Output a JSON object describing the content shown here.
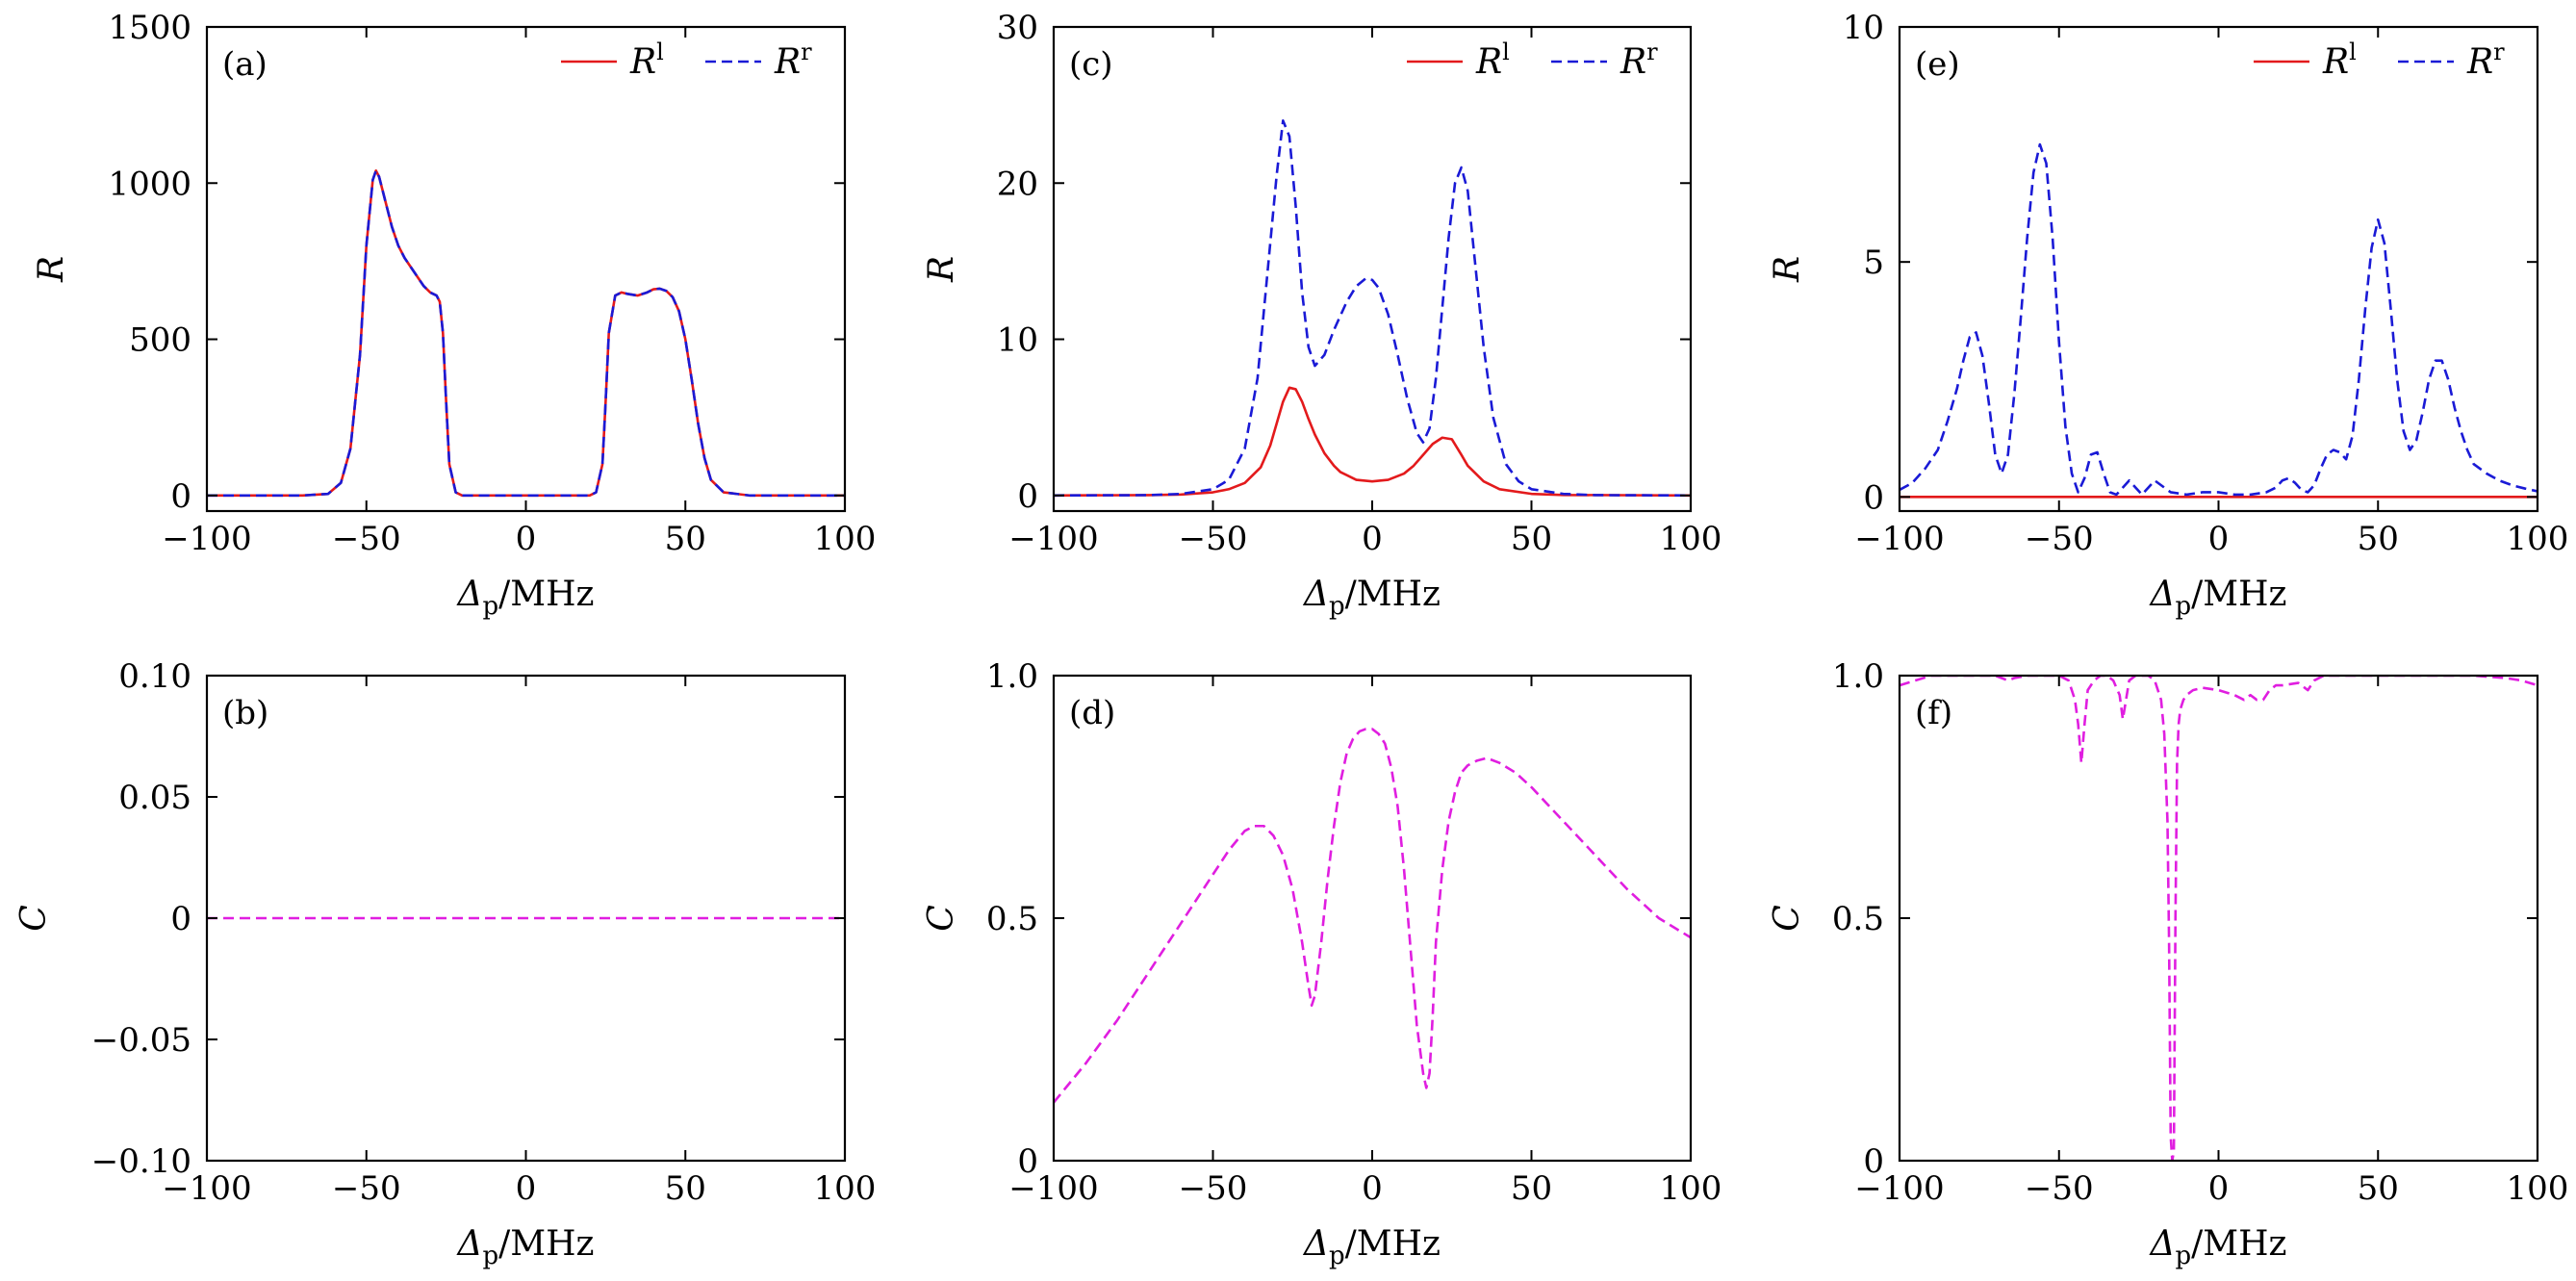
{
  "colors": {
    "red": "#e31a1c",
    "blue": "#1a1ad6",
    "magenta": "#e01ee0",
    "axis": "#000000"
  },
  "chart_data": [
    {
      "panel": "(a)",
      "type": "line",
      "xlabel": {
        "main": "Δ",
        "sub": "p",
        "unit": "/MHz"
      },
      "ylabel": "R",
      "xlim": [
        -100,
        100
      ],
      "ylim": [
        -50,
        1500
      ],
      "xticks": [
        -100,
        -50,
        0,
        50,
        100
      ],
      "xtick_labels": [
        "−100",
        "−50",
        "0",
        "50",
        "100"
      ],
      "yticks": [
        0,
        500,
        1000,
        1500
      ],
      "ytick_labels": [
        "0",
        "500",
        "1000",
        "1500"
      ],
      "legend": {
        "placement": "top-right",
        "entries": [
          {
            "base": "R",
            "sup": "l"
          },
          {
            "base": "R",
            "sup": "r"
          }
        ]
      },
      "series": [
        {
          "name": "R^l",
          "color": "red",
          "dash": false,
          "x": [
            -100,
            -70,
            -62,
            -58,
            -55,
            -52,
            -50,
            -48,
            -47,
            -46,
            -44,
            -42,
            -40,
            -38,
            -36,
            -34,
            -32,
            -30,
            -28,
            -27,
            -26,
            -25,
            -24,
            -22,
            -20,
            0,
            20,
            22,
            24,
            25,
            26,
            28,
            30,
            32,
            35,
            38,
            40,
            42,
            44,
            46,
            48,
            50,
            52,
            54,
            56,
            58,
            62,
            70,
            100
          ],
          "y": [
            0,
            0,
            5,
            40,
            150,
            450,
            800,
            1010,
            1040,
            1020,
            940,
            860,
            800,
            760,
            730,
            700,
            670,
            650,
            640,
            620,
            520,
            300,
            100,
            10,
            0,
            0,
            0,
            10,
            100,
            300,
            520,
            640,
            650,
            645,
            640,
            650,
            660,
            662,
            655,
            635,
            590,
            500,
            370,
            230,
            120,
            50,
            10,
            0,
            0
          ]
        },
        {
          "name": "R^r",
          "color": "blue",
          "dash": true,
          "x": [
            -100,
            -70,
            -62,
            -58,
            -55,
            -52,
            -50,
            -48,
            -47,
            -46,
            -44,
            -42,
            -40,
            -38,
            -36,
            -34,
            -32,
            -30,
            -28,
            -27,
            -26,
            -25,
            -24,
            -22,
            -20,
            0,
            20,
            22,
            24,
            25,
            26,
            28,
            30,
            32,
            35,
            38,
            40,
            42,
            44,
            46,
            48,
            50,
            52,
            54,
            56,
            58,
            62,
            70,
            100
          ],
          "y": [
            0,
            0,
            5,
            40,
            150,
            450,
            800,
            1010,
            1040,
            1020,
            940,
            860,
            800,
            760,
            730,
            700,
            670,
            650,
            640,
            620,
            520,
            300,
            100,
            10,
            0,
            0,
            0,
            10,
            100,
            300,
            520,
            640,
            650,
            645,
            640,
            650,
            660,
            662,
            655,
            635,
            590,
            500,
            370,
            230,
            120,
            50,
            10,
            0,
            0
          ]
        }
      ]
    },
    {
      "panel": "(c)",
      "type": "line",
      "xlabel": {
        "main": "Δ",
        "sub": "p",
        "unit": "/MHz"
      },
      "ylabel": "R",
      "xlim": [
        -100,
        100
      ],
      "ylim": [
        -1,
        30
      ],
      "xticks": [
        -100,
        -50,
        0,
        50,
        100
      ],
      "xtick_labels": [
        "−100",
        "−50",
        "0",
        "50",
        "100"
      ],
      "yticks": [
        0,
        10,
        20,
        30
      ],
      "ytick_labels": [
        "0",
        "10",
        "20",
        "30"
      ],
      "legend": {
        "placement": "top-right",
        "entries": [
          {
            "base": "R",
            "sup": "l"
          },
          {
            "base": "R",
            "sup": "r"
          }
        ]
      },
      "series": [
        {
          "name": "R^l",
          "color": "red",
          "dash": false,
          "x": [
            -100,
            -70,
            -60,
            -50,
            -45,
            -40,
            -35,
            -32,
            -30,
            -28,
            -26,
            -24,
            -22,
            -20,
            -18,
            -15,
            -12,
            -10,
            -5,
            0,
            5,
            10,
            13,
            16,
            19,
            22,
            25,
            28,
            30,
            35,
            40,
            50,
            60,
            100
          ],
          "y": [
            0,
            0.02,
            0.06,
            0.2,
            0.4,
            0.8,
            1.8,
            3.2,
            4.6,
            6.0,
            6.9,
            6.8,
            6.0,
            4.9,
            3.9,
            2.7,
            1.9,
            1.5,
            1.0,
            0.9,
            1.0,
            1.4,
            1.9,
            2.6,
            3.3,
            3.7,
            3.6,
            2.6,
            1.9,
            0.9,
            0.4,
            0.1,
            0.03,
            0
          ]
        },
        {
          "name": "R^r",
          "color": "blue",
          "dash": true,
          "x": [
            -100,
            -70,
            -60,
            -50,
            -45,
            -40,
            -36,
            -33,
            -30,
            -28,
            -26,
            -24,
            -22,
            -20,
            -18,
            -15,
            -12,
            -8,
            -5,
            -2,
            0,
            2,
            5,
            8,
            11,
            14,
            16,
            18,
            20,
            22,
            24,
            26,
            28,
            30,
            32,
            35,
            38,
            42,
            46,
            50,
            60,
            70,
            100
          ],
          "y": [
            0,
            0.02,
            0.1,
            0.4,
            1.0,
            3.0,
            7.5,
            14.0,
            20.5,
            24.0,
            23.0,
            18.5,
            13.0,
            9.5,
            8.3,
            9.0,
            10.6,
            12.4,
            13.4,
            13.9,
            13.8,
            13.3,
            11.6,
            9.0,
            6.2,
            4.0,
            3.4,
            4.3,
            7.5,
            12.0,
            16.5,
            20.0,
            21.0,
            19.5,
            15.5,
            9.5,
            5.0,
            2.0,
            0.9,
            0.4,
            0.1,
            0.02,
            0
          ]
        }
      ]
    },
    {
      "panel": "(e)",
      "type": "line",
      "xlabel": {
        "main": "Δ",
        "sub": "p",
        "unit": "/MHz"
      },
      "ylabel": "R",
      "xlim": [
        -100,
        100
      ],
      "ylim": [
        -0.3,
        10
      ],
      "xticks": [
        -100,
        -50,
        0,
        50,
        100
      ],
      "xtick_labels": [
        "−100",
        "−50",
        "0",
        "50",
        "100"
      ],
      "yticks": [
        0,
        5,
        10
      ],
      "ytick_labels": [
        "0",
        "5",
        "10"
      ],
      "legend": {
        "placement": "top-right",
        "entries": [
          {
            "base": "R",
            "sup": "l"
          },
          {
            "base": "R",
            "sup": "r"
          }
        ]
      },
      "series": [
        {
          "name": "R^l",
          "color": "red",
          "dash": false,
          "x": [
            -100,
            100
          ],
          "y": [
            0,
            0
          ]
        },
        {
          "name": "R^r",
          "color": "blue",
          "dash": true,
          "x": [
            -100,
            -96,
            -92,
            -88,
            -85,
            -82,
            -80,
            -78,
            -76,
            -74,
            -72,
            -70,
            -68,
            -66,
            -64,
            -62,
            -60,
            -58,
            -56,
            -54,
            -52,
            -50,
            -48,
            -46,
            -44,
            -42,
            -40,
            -38,
            -36,
            -34,
            -32,
            -30,
            -28,
            -26,
            -24,
            -22,
            -20,
            -15,
            -10,
            -5,
            0,
            5,
            10,
            15,
            18,
            20,
            22,
            24,
            26,
            28,
            30,
            32,
            34,
            36,
            38,
            40,
            42,
            44,
            46,
            48,
            50,
            52,
            54,
            56,
            58,
            60,
            62,
            64,
            66,
            68,
            70,
            72,
            74,
            76,
            78,
            80,
            84,
            88,
            92,
            96,
            100
          ],
          "y": [
            0.15,
            0.3,
            0.6,
            1.0,
            1.6,
            2.3,
            2.9,
            3.4,
            3.5,
            3.0,
            2.0,
            0.9,
            0.5,
            0.9,
            2.2,
            3.8,
            5.5,
            6.9,
            7.5,
            7.1,
            5.5,
            3.3,
            1.5,
            0.5,
            0.1,
            0.4,
            0.9,
            0.95,
            0.5,
            0.1,
            0.05,
            0.2,
            0.35,
            0.2,
            0.05,
            0.2,
            0.35,
            0.1,
            0.05,
            0.1,
            0.1,
            0.05,
            0.05,
            0.1,
            0.2,
            0.35,
            0.4,
            0.3,
            0.15,
            0.1,
            0.25,
            0.6,
            0.9,
            1.0,
            0.95,
            0.8,
            1.3,
            2.5,
            4.0,
            5.3,
            5.9,
            5.4,
            4.0,
            2.5,
            1.4,
            1.0,
            1.2,
            1.8,
            2.5,
            2.9,
            2.9,
            2.5,
            1.9,
            1.4,
            1.0,
            0.7,
            0.5,
            0.35,
            0.25,
            0.18,
            0.12
          ]
        }
      ]
    },
    {
      "panel": "(b)",
      "type": "line",
      "xlabel": {
        "main": "Δ",
        "sub": "p",
        "unit": "/MHz"
      },
      "ylabel": "C",
      "xlim": [
        -100,
        100
      ],
      "ylim": [
        -0.1,
        0.1
      ],
      "xticks": [
        -100,
        -50,
        0,
        50,
        100
      ],
      "xtick_labels": [
        "−100",
        "−50",
        "0",
        "50",
        "100"
      ],
      "yticks": [
        -0.1,
        -0.05,
        0,
        0.05,
        0.1
      ],
      "ytick_labels": [
        "−0.10",
        "−0.05",
        "0",
        "0.05",
        "0.10"
      ],
      "series": [
        {
          "name": "C",
          "color": "magenta",
          "dash": true,
          "x": [
            -100,
            100
          ],
          "y": [
            0,
            0
          ]
        }
      ]
    },
    {
      "panel": "(d)",
      "type": "line",
      "xlabel": {
        "main": "Δ",
        "sub": "p",
        "unit": "/MHz"
      },
      "ylabel": "C",
      "xlim": [
        -100,
        100
      ],
      "ylim": [
        0,
        1
      ],
      "xticks": [
        -100,
        -50,
        0,
        50,
        100
      ],
      "xtick_labels": [
        "−100",
        "−50",
        "0",
        "50",
        "100"
      ],
      "yticks": [
        0,
        0.5,
        1
      ],
      "ytick_labels": [
        "0",
        "0.5",
        "1.0"
      ],
      "series": [
        {
          "name": "C",
          "color": "magenta",
          "dash": true,
          "x": [
            -100,
            -90,
            -80,
            -70,
            -60,
            -50,
            -45,
            -40,
            -37,
            -34,
            -31,
            -28,
            -25,
            -22,
            -20,
            -19,
            -18,
            -16,
            -14,
            -12,
            -10,
            -8,
            -6,
            -4,
            -2,
            0,
            2,
            4,
            6,
            8,
            10,
            12,
            14,
            16,
            17,
            18,
            19,
            20,
            22,
            24,
            26,
            28,
            30,
            33,
            36,
            40,
            45,
            50,
            60,
            70,
            80,
            90,
            100
          ],
          "y": [
            0.12,
            0.2,
            0.29,
            0.39,
            0.49,
            0.59,
            0.64,
            0.68,
            0.69,
            0.69,
            0.67,
            0.63,
            0.56,
            0.45,
            0.36,
            0.32,
            0.34,
            0.45,
            0.58,
            0.69,
            0.78,
            0.84,
            0.87,
            0.885,
            0.89,
            0.89,
            0.88,
            0.86,
            0.81,
            0.73,
            0.6,
            0.44,
            0.28,
            0.18,
            0.15,
            0.18,
            0.3,
            0.45,
            0.6,
            0.7,
            0.76,
            0.8,
            0.815,
            0.825,
            0.83,
            0.82,
            0.8,
            0.77,
            0.7,
            0.63,
            0.56,
            0.5,
            0.46
          ]
        }
      ]
    },
    {
      "panel": "(f)",
      "type": "line",
      "xlabel": {
        "main": "Δ",
        "sub": "p",
        "unit": "/MHz"
      },
      "ylabel": "C",
      "xlim": [
        -100,
        100
      ],
      "ylim": [
        0,
        1
      ],
      "xticks": [
        -100,
        -50,
        0,
        50,
        100
      ],
      "xtick_labels": [
        "−100",
        "−50",
        "0",
        "50",
        "100"
      ],
      "yticks": [
        0,
        0.5,
        1
      ],
      "ytick_labels": [
        "0",
        "0.5",
        "1.0"
      ],
      "series": [
        {
          "name": "C",
          "color": "magenta",
          "dash": true,
          "x": [
            -100,
            -95,
            -90,
            -85,
            -80,
            -75,
            -70,
            -68,
            -66,
            -64,
            -60,
            -55,
            -50,
            -47,
            -45,
            -44,
            -43,
            -42,
            -41,
            -39,
            -37,
            -35,
            -33,
            -31,
            -30,
            -29,
            -28,
            -26,
            -24,
            -22,
            -20,
            -18,
            -17,
            -16,
            -15.5,
            -15,
            -14.5,
            -14,
            -13.5,
            -13,
            -12.5,
            -12,
            -11,
            -10,
            -8,
            -5,
            0,
            5,
            8,
            10,
            12,
            14,
            16,
            18,
            20,
            25,
            28,
            30,
            33,
            40,
            50,
            60,
            70,
            80,
            90,
            95,
            100
          ],
          "y": [
            0.98,
            0.99,
            1.0,
            1.0,
            1.0,
            1.0,
            1.0,
            0.995,
            0.99,
            0.995,
            1.0,
            1.0,
            1.0,
            0.99,
            0.95,
            0.9,
            0.82,
            0.9,
            0.97,
            0.99,
            1.0,
            1.0,
            0.99,
            0.96,
            0.91,
            0.95,
            0.99,
            1.0,
            1.0,
            1.0,
            0.99,
            0.95,
            0.88,
            0.7,
            0.45,
            0.05,
            0.0,
            0.02,
            0.5,
            0.82,
            0.9,
            0.93,
            0.95,
            0.96,
            0.97,
            0.975,
            0.97,
            0.96,
            0.95,
            0.96,
            0.95,
            0.95,
            0.97,
            0.98,
            0.98,
            0.985,
            0.97,
            0.99,
            1.0,
            1.0,
            1.0,
            1.0,
            1.0,
            1.0,
            0.995,
            0.99,
            0.98
          ]
        }
      ]
    }
  ]
}
